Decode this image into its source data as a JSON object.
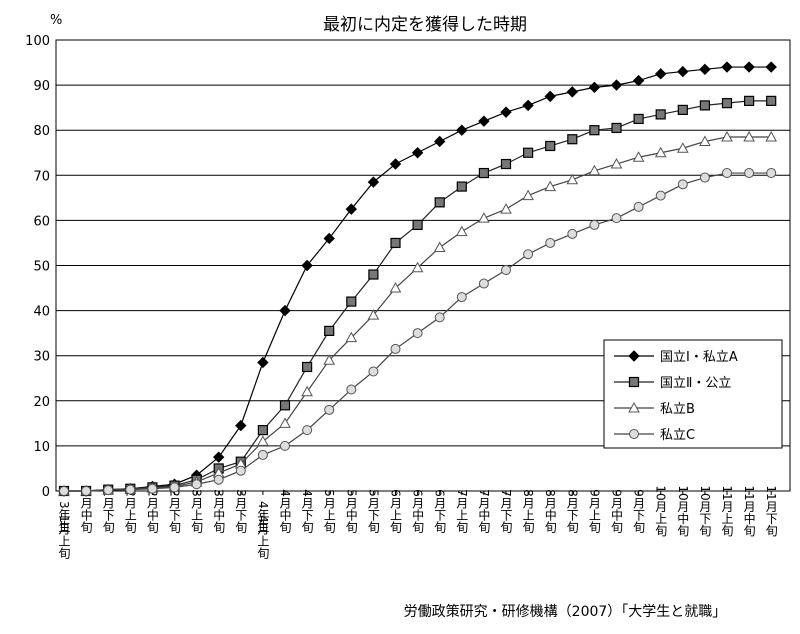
{
  "chart_data": {
    "type": "line",
    "title": "最初に内定を獲得した時期",
    "ylabel": "%",
    "ylim": [
      0,
      100
    ],
    "y_ticks": [
      0,
      10,
      20,
      30,
      40,
      50,
      60,
      70,
      80,
      90,
      100
    ],
    "grid": "horizontal",
    "legend_position": "bottom-right",
    "categories": [
      "1月上旬",
      "1月中旬",
      "1月下旬",
      "2月上旬",
      "2月中旬",
      "2月下旬",
      "3月上旬",
      "3月中旬",
      "3月下旬",
      "4月上旬",
      "4月中旬",
      "4月下旬",
      "5月上旬",
      "5月中旬",
      "5月下旬",
      "6月上旬",
      "6月中旬",
      "6月下旬",
      "7月上旬",
      "7月中旬",
      "7月下旬",
      "8月上旬",
      "8月中旬",
      "8月下旬",
      "9月上旬",
      "9月中旬",
      "9月下旬",
      "10月上旬",
      "10月中旬",
      "10月下旬",
      "11月上旬",
      "11月中旬",
      "11月下旬"
    ],
    "group_labels": [
      {
        "label": "3年生",
        "start_index": 0
      },
      {
        "label": "4年生",
        "start_index": 9
      }
    ],
    "series": [
      {
        "name": "国立Ⅰ・私立A",
        "marker": "diamond-filled",
        "values": [
          0,
          0,
          0.3,
          0.5,
          1,
          1.5,
          3.5,
          7.5,
          14.5,
          28.5,
          40,
          50,
          56,
          62.5,
          68.5,
          72.5,
          75,
          77.5,
          80,
          82,
          84,
          85.5,
          87.5,
          88.5,
          89.5,
          90,
          91,
          92.5,
          93,
          93.5,
          94,
          94,
          94
        ]
      },
      {
        "name": "国立Ⅱ・公立",
        "marker": "square-gray",
        "values": [
          0,
          0,
          0.3,
          0.5,
          0.8,
          1.2,
          2.5,
          5,
          6.5,
          13.5,
          19,
          27.5,
          35.5,
          42,
          48,
          55,
          59,
          64,
          67.5,
          70.5,
          72.5,
          75,
          76.5,
          78,
          80,
          80.5,
          82.5,
          83.5,
          84.5,
          85.5,
          86,
          86.5,
          86.5
        ]
      },
      {
        "name": "私立B",
        "marker": "triangle-open",
        "values": [
          0,
          0,
          0.2,
          0.4,
          0.7,
          1,
          2,
          4,
          6,
          11,
          15,
          22,
          29,
          34,
          39,
          45,
          49.5,
          54,
          57.5,
          60.5,
          62.5,
          65.5,
          67.5,
          69,
          71,
          72.5,
          74,
          75,
          76,
          77.5,
          78.5,
          78.5,
          78.5
        ]
      },
      {
        "name": "私立C",
        "marker": "circle-open",
        "values": [
          0,
          0,
          0.2,
          0.3,
          0.5,
          0.8,
          1.5,
          2.5,
          4.5,
          8,
          10,
          13.5,
          18,
          22.5,
          26.5,
          31.5,
          35,
          38.5,
          43,
          46,
          49,
          52.5,
          55,
          57,
          59,
          60.5,
          63,
          65.5,
          68,
          69.5,
          70.5,
          70.5,
          70.5
        ]
      }
    ],
    "source": "労働政策研究・研修機構（2007）「大学生と就職」"
  }
}
